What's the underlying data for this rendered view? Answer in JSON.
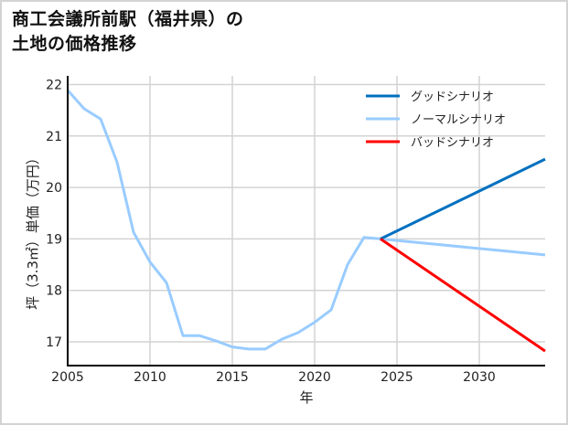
{
  "title_lines": [
    "商工会議所前駅（福井県）の",
    "土地の価格推移"
  ],
  "chart_data": {
    "type": "line",
    "title": "商工会議所前駅（福井県）の土地の価格推移",
    "xlabel": "年",
    "ylabel": "坪（3.3㎡）単価（万円）",
    "xlim": [
      2005,
      2034
    ],
    "ylim": [
      16.6,
      22.2
    ],
    "xticks": [
      2005,
      2010,
      2015,
      2020,
      2025,
      2030
    ],
    "yticks": [
      17,
      18,
      19,
      20,
      21,
      22
    ],
    "grid": true,
    "legend_position": "upper right",
    "series": [
      {
        "name": "グッドシナリオ",
        "color": "#0070c0",
        "x": [
          2024,
          2034
        ],
        "values": [
          19.0,
          20.55
        ]
      },
      {
        "name": "ノーマルシナリオ",
        "color": "#99ccff",
        "x": [
          2005,
          2006,
          2007,
          2008,
          2009,
          2010,
          2011,
          2012,
          2013,
          2014,
          2015,
          2016,
          2017,
          2018,
          2019,
          2020,
          2021,
          2022,
          2023,
          2024,
          2034
        ],
        "values": [
          21.89,
          21.53,
          21.33,
          20.49,
          19.13,
          18.55,
          18.15,
          17.12,
          17.12,
          17.02,
          16.9,
          16.86,
          16.86,
          17.05,
          17.18,
          17.38,
          17.62,
          18.5,
          19.03,
          19.0,
          18.69
        ]
      },
      {
        "name": "バッドシナリオ",
        "color": "#ff0000",
        "x": [
          2024,
          2034
        ],
        "values": [
          19.0,
          16.82
        ]
      }
    ]
  }
}
